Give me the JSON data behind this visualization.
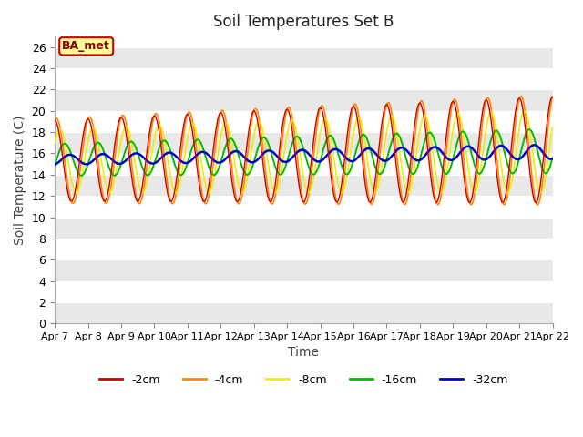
{
  "title": "Soil Temperatures Set B",
  "xlabel": "Time",
  "ylabel": "Soil Temperature (C)",
  "ylim": [
    0,
    27
  ],
  "yticks": [
    0,
    2,
    4,
    6,
    8,
    10,
    12,
    14,
    16,
    18,
    20,
    22,
    24,
    26
  ],
  "x_labels": [
    "Apr 7",
    "Apr 8",
    "Apr 9",
    "Apr 10",
    "Apr 11",
    "Apr 12",
    "Apr 13",
    "Apr 14",
    "Apr 15",
    "Apr 16",
    "Apr 17",
    "Apr 18",
    "Apr 19",
    "Apr 20",
    "Apr 21",
    "Apr 22"
  ],
  "n_days": 15,
  "line_colors": {
    "-2cm": "#cc0000",
    "-4cm": "#ff8800",
    "-8cm": "#eeee00",
    "-16cm": "#00bb00",
    "-32cm": "#0000cc"
  },
  "fig_bg": "#ffffff",
  "plot_bg_light": "#f0f0f0",
  "plot_bg_dark": "#e0e0e0",
  "legend_label": "BA_met",
  "annotation_bg": "#ffff99",
  "annotation_border": "#cc0000"
}
